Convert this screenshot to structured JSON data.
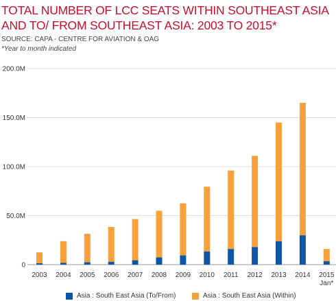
{
  "title": "TOTAL NUMBER OF LCC SEATS WITHIN SOUTHEAST ASIA AND TO/ FROM SOUTHEAST ASIA: 2003 TO 2015*",
  "source": "SOURCE: CAPA - CENTRE FOR AVIATION & OAG",
  "note": "*Year to month indicated",
  "chart_data": {
    "type": "bar",
    "stacked": true,
    "categories": [
      "2003",
      "2004",
      "2005",
      "2006",
      "2007",
      "2008",
      "2009",
      "2010",
      "2011",
      "2012",
      "2013",
      "2014",
      "2015\nJan*"
    ],
    "series": [
      {
        "name": "Asia : South East Asia (To/From)",
        "color": "#0d57a6",
        "values": [
          1.5,
          2,
          2.5,
          3,
          4.5,
          7.5,
          9.5,
          13.5,
          16,
          18,
          24,
          30,
          3.5
        ]
      },
      {
        "name": "Asia : South East Asia (Within)",
        "color": "#f7a03c",
        "values": [
          11,
          22,
          29,
          35.5,
          42,
          47.5,
          53,
          66,
          80,
          93,
          121,
          135,
          12.5
        ]
      }
    ],
    "yticks": [
      "0",
      "50.0M",
      "100.0M",
      "150.0M",
      "200.0M"
    ],
    "ylim": [
      0,
      200
    ],
    "grid": true,
    "legend": "bottom"
  }
}
